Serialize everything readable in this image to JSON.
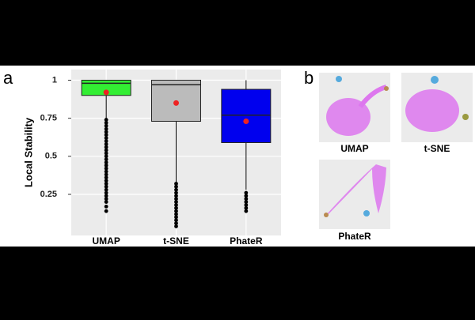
{
  "panel_labels": [
    "a",
    "b"
  ],
  "chart_data": {
    "type": "box",
    "y_label": "Local Stability",
    "categories": [
      "UMAP",
      "t-SNE",
      "PhateR"
    ],
    "ylim": [
      -0.02,
      1.07
    ],
    "yticks": [
      0.25,
      0.5,
      0.75,
      1
    ],
    "grid": true,
    "mean_color": "#ee2222",
    "outlier_color": "#000000",
    "series": [
      {
        "name": "UMAP",
        "color": "#33ee33",
        "whisker_low": 0.75,
        "q1": 0.9,
        "median": 0.98,
        "q3": 1.0,
        "whisker_high": 1.0,
        "mean": 0.92,
        "outliers": [
          0.74,
          0.72,
          0.7,
          0.68,
          0.66,
          0.64,
          0.62,
          0.6,
          0.58,
          0.56,
          0.54,
          0.52,
          0.5,
          0.48,
          0.46,
          0.44,
          0.42,
          0.4,
          0.38,
          0.36,
          0.34,
          0.32,
          0.3,
          0.28,
          0.26,
          0.24,
          0.22,
          0.2,
          0.17,
          0.14
        ]
      },
      {
        "name": "t-SNE",
        "color": "#bbbbbb",
        "whisker_low": 0.33,
        "q1": 0.73,
        "median": 0.97,
        "q3": 1.0,
        "whisker_high": 1.0,
        "mean": 0.85,
        "outliers": [
          0.32,
          0.3,
          0.28,
          0.26,
          0.24,
          0.22,
          0.2,
          0.18,
          0.16,
          0.14,
          0.12,
          0.1,
          0.08,
          0.06,
          0.04
        ]
      },
      {
        "name": "PhateR",
        "color": "#0000ee",
        "whisker_low": 0.28,
        "q1": 0.59,
        "median": 0.77,
        "q3": 0.94,
        "whisker_high": 1.0,
        "mean": 0.73,
        "outliers": [
          0.26,
          0.24,
          0.22,
          0.2,
          0.18,
          0.16,
          0.14
        ]
      }
    ]
  },
  "embeddings": [
    "UMAP",
    "t-SNE",
    "PhateR"
  ]
}
